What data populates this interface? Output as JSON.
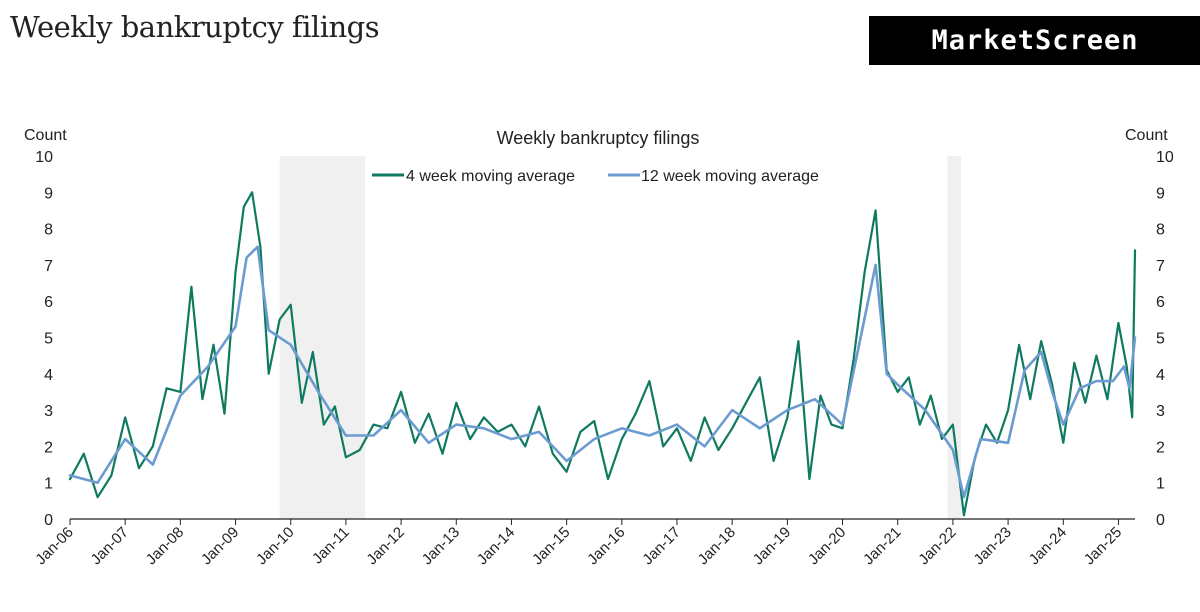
{
  "header": {
    "title": "Weekly bankruptcy filings"
  },
  "brand": {
    "name": "MarketScreen"
  },
  "colors": {
    "series4": "#107a60",
    "series12": "#6b9bd0",
    "shade": "#e6e6e6",
    "axis": "#222222"
  },
  "chart_data": {
    "type": "line",
    "title": "Weekly bankruptcy filings",
    "ylabel_left": "Count",
    "ylabel_right": "Count",
    "ylim": [
      0,
      10
    ],
    "yticks": [
      "0",
      "1",
      "2",
      "3",
      "4",
      "5",
      "6",
      "7",
      "8",
      "9",
      "10"
    ],
    "x_range": [
      2006.0,
      2025.3
    ],
    "x_ticks": [
      {
        "label": "Jan-06",
        "x": 2006
      },
      {
        "label": "Jan-07",
        "x": 2007
      },
      {
        "label": "Jan-08",
        "x": 2008
      },
      {
        "label": "Jan-09",
        "x": 2009
      },
      {
        "label": "Jan-10",
        "x": 2010
      },
      {
        "label": "Jan-11",
        "x": 2011
      },
      {
        "label": "Jan-12",
        "x": 2012
      },
      {
        "label": "Jan-13",
        "x": 2013
      },
      {
        "label": "Jan-14",
        "x": 2014
      },
      {
        "label": "Jan-15",
        "x": 2015
      },
      {
        "label": "Jan-16",
        "x": 2016
      },
      {
        "label": "Jan-17",
        "x": 2017
      },
      {
        "label": "Jan-18",
        "x": 2018
      },
      {
        "label": "Jan-19",
        "x": 2019
      },
      {
        "label": "Jan-20",
        "x": 2020
      },
      {
        "label": "Jan-21",
        "x": 2021
      },
      {
        "label": "Jan-22",
        "x": 2022
      },
      {
        "label": "Jan-23",
        "x": 2023
      },
      {
        "label": "Jan-24",
        "x": 2024
      },
      {
        "label": "Jan-25",
        "x": 2025
      }
    ],
    "shaded_periods": [
      {
        "start": 2009.8,
        "end": 2011.35
      },
      {
        "start": 2021.9,
        "end": 2022.15
      }
    ],
    "legend_position": "top-center",
    "series": [
      {
        "name": "4 week moving average",
        "x": [
          2006.0,
          2006.25,
          2006.5,
          2006.75,
          2007.0,
          2007.25,
          2007.5,
          2007.75,
          2008.0,
          2008.2,
          2008.4,
          2008.6,
          2008.8,
          2009.0,
          2009.15,
          2009.3,
          2009.45,
          2009.6,
          2009.8,
          2010.0,
          2010.2,
          2010.4,
          2010.6,
          2010.8,
          2011.0,
          2011.25,
          2011.5,
          2011.75,
          2012.0,
          2012.25,
          2012.5,
          2012.75,
          2013.0,
          2013.25,
          2013.5,
          2013.75,
          2014.0,
          2014.25,
          2014.5,
          2014.75,
          2015.0,
          2015.25,
          2015.5,
          2015.75,
          2016.0,
          2016.25,
          2016.5,
          2016.75,
          2017.0,
          2017.25,
          2017.5,
          2017.75,
          2018.0,
          2018.25,
          2018.5,
          2018.75,
          2019.0,
          2019.2,
          2019.4,
          2019.6,
          2019.8,
          2020.0,
          2020.2,
          2020.4,
          2020.6,
          2020.8,
          2021.0,
          2021.2,
          2021.4,
          2021.6,
          2021.8,
          2022.0,
          2022.2,
          2022.4,
          2022.6,
          2022.8,
          2023.0,
          2023.2,
          2023.4,
          2023.6,
          2023.8,
          2024.0,
          2024.2,
          2024.4,
          2024.6,
          2024.8,
          2025.0,
          2025.15,
          2025.25,
          2025.3
        ],
        "values": [
          1.1,
          1.8,
          0.6,
          1.2,
          2.8,
          1.4,
          2.0,
          3.6,
          3.5,
          6.4,
          3.3,
          4.8,
          2.9,
          6.8,
          8.6,
          9.0,
          7.5,
          4.0,
          5.5,
          5.9,
          3.2,
          4.6,
          2.6,
          3.1,
          1.7,
          1.9,
          2.6,
          2.5,
          3.5,
          2.1,
          2.9,
          1.8,
          3.2,
          2.2,
          2.8,
          2.4,
          2.6,
          2.0,
          3.1,
          1.8,
          1.3,
          2.4,
          2.7,
          1.1,
          2.2,
          2.9,
          3.8,
          2.0,
          2.5,
          1.6,
          2.8,
          1.9,
          2.5,
          3.2,
          3.9,
          1.6,
          2.8,
          4.9,
          1.1,
          3.4,
          2.6,
          2.5,
          4.4,
          6.8,
          8.5,
          4.1,
          3.5,
          3.9,
          2.6,
          3.4,
          2.2,
          2.6,
          0.1,
          1.7,
          2.6,
          2.1,
          3.0,
          4.8,
          3.3,
          4.9,
          3.7,
          2.1,
          4.3,
          3.2,
          4.5,
          3.3,
          5.4,
          4.2,
          2.8,
          7.4
        ]
      },
      {
        "name": "12 week moving average",
        "x": [
          2006.0,
          2006.5,
          2007.0,
          2007.5,
          2008.0,
          2008.5,
          2009.0,
          2009.2,
          2009.4,
          2009.6,
          2010.0,
          2010.5,
          2011.0,
          2011.5,
          2012.0,
          2012.5,
          2013.0,
          2013.5,
          2014.0,
          2014.5,
          2015.0,
          2015.5,
          2016.0,
          2016.5,
          2017.0,
          2017.5,
          2018.0,
          2018.5,
          2019.0,
          2019.5,
          2020.0,
          2020.3,
          2020.6,
          2020.8,
          2021.0,
          2021.5,
          2022.0,
          2022.2,
          2022.5,
          2023.0,
          2023.3,
          2023.6,
          2023.8,
          2024.0,
          2024.3,
          2024.6,
          2024.9,
          2025.1,
          2025.2,
          2025.3
        ],
        "values": [
          1.2,
          1.0,
          2.2,
          1.5,
          3.4,
          4.2,
          5.3,
          7.2,
          7.5,
          5.2,
          4.8,
          3.5,
          2.3,
          2.3,
          3.0,
          2.1,
          2.6,
          2.5,
          2.2,
          2.4,
          1.6,
          2.2,
          2.5,
          2.3,
          2.6,
          2.0,
          3.0,
          2.5,
          3.0,
          3.3,
          2.6,
          4.8,
          7.0,
          4.0,
          3.7,
          3.0,
          1.9,
          0.6,
          2.2,
          2.1,
          4.1,
          4.6,
          3.5,
          2.6,
          3.6,
          3.8,
          3.8,
          4.2,
          3.6,
          5.0
        ]
      }
    ]
  }
}
